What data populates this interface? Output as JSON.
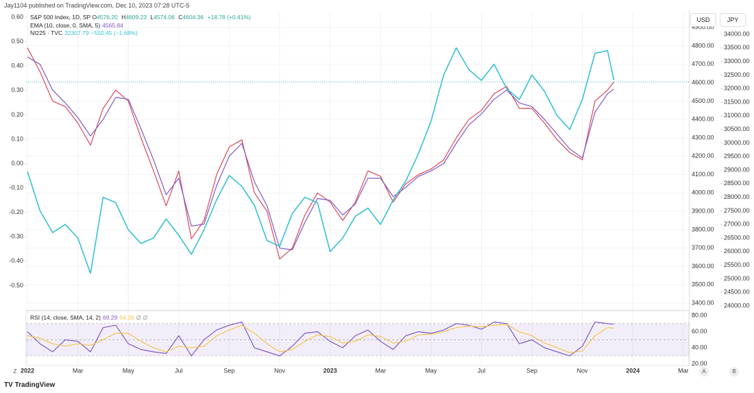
{
  "header": {
    "publisher": "Jay1104 published on TradingView.com, Dec 10, 2023 07:28 UTC-5",
    "brand": "TradingView"
  },
  "buttons": {
    "currency": [
      "USD",
      "JPY"
    ],
    "scale": [
      "A",
      "B"
    ],
    "zoom": "Z"
  },
  "chart_data": [
    {
      "type": "line",
      "x": [
        0,
        0.5,
        1,
        1.5,
        2,
        2.5,
        3,
        3.5,
        4,
        4.5,
        5,
        5.5,
        6,
        6.5,
        7,
        7.5,
        8,
        8.5,
        9,
        9.5,
        10,
        10.5,
        11,
        11.5,
        12,
        12.5,
        13,
        13.5,
        14,
        14.5,
        15,
        15.5,
        16,
        16.5,
        17,
        17.5,
        18,
        18.5,
        19,
        19.5,
        20,
        20.5,
        21,
        21.5,
        22,
        22.5,
        23,
        23.25
      ],
      "xlim": [
        0,
        26.2
      ],
      "xticks": [
        {
          "value": 0,
          "label": "2022"
        },
        {
          "value": 2,
          "label": "Mar"
        },
        {
          "value": 4,
          "label": "May"
        },
        {
          "value": 6,
          "label": "Jul"
        },
        {
          "value": 8,
          "label": "Sep"
        },
        {
          "value": 10,
          "label": "Nov"
        },
        {
          "value": 12,
          "label": "2023"
        },
        {
          "value": 14,
          "label": "Mar"
        },
        {
          "value": 16,
          "label": "May"
        },
        {
          "value": 18,
          "label": "Jul"
        },
        {
          "value": 20,
          "label": "Sep"
        },
        {
          "value": 22,
          "label": "Nov"
        },
        {
          "value": 24,
          "label": "2024"
        },
        {
          "value": 26,
          "label": "Mar"
        }
      ],
      "ylim": [
        -0.6,
        0.62
      ],
      "yticks": [
        {
          "value": 0.6,
          "label": "0.60"
        },
        {
          "value": 0.5,
          "label": "0.50"
        },
        {
          "value": 0.4,
          "label": "0.40"
        },
        {
          "value": 0.3,
          "label": "0.30"
        },
        {
          "value": 0.2,
          "label": "0.20"
        },
        {
          "value": 0.1,
          "label": "0.10"
        },
        {
          "value": 0,
          "label": "0.00"
        },
        {
          "value": -0.1,
          "label": "-0.10"
        },
        {
          "value": -0.2,
          "label": "-0.20"
        },
        {
          "value": -0.3,
          "label": "-0.30"
        },
        {
          "value": -0.4,
          "label": "-0.40"
        },
        {
          "value": -0.5,
          "label": "-0.50"
        }
      ],
      "y2lim": [
        3363,
        4983
      ],
      "y2ticks": [
        {
          "value": 3400,
          "label": "3400.00"
        },
        {
          "value": 3500,
          "label": "3500.00"
        },
        {
          "value": 3600,
          "label": "3600.00"
        },
        {
          "value": 3700,
          "label": "3700.00"
        },
        {
          "value": 3800,
          "label": "3800.00"
        },
        {
          "value": 3900,
          "label": "3900.00"
        },
        {
          "value": 4000,
          "label": "4000.00"
        },
        {
          "value": 4100,
          "label": "4100.00"
        },
        {
          "value": 4200,
          "label": "4200.00"
        },
        {
          "value": 4300,
          "label": "4300.00"
        },
        {
          "value": 4400,
          "label": "4400.00"
        },
        {
          "value": 4500,
          "label": "4500.00"
        },
        {
          "value": 4600,
          "label": "4600.00"
        },
        {
          "value": 4700,
          "label": "4700.00"
        },
        {
          "value": 4800,
          "label": "4800.00"
        },
        {
          "value": 4900,
          "label": "4900.00"
        }
      ],
      "y3lim": [
        23848,
        34808
      ],
      "y3ticks": [
        {
          "value": 24000,
          "label": "24000.00"
        },
        {
          "value": 24500,
          "label": "24500.00"
        },
        {
          "value": 25000,
          "label": "25000.00"
        },
        {
          "value": 25500,
          "label": "25500.00"
        },
        {
          "value": 26000,
          "label": "26000.00"
        },
        {
          "value": 26500,
          "label": "26500.00"
        },
        {
          "value": 27000,
          "label": "27000.00"
        },
        {
          "value": 27500,
          "label": "27500.00"
        },
        {
          "value": 28000,
          "label": "28000.00"
        },
        {
          "value": 28500,
          "label": "28500.00"
        },
        {
          "value": 29000,
          "label": "29000.00"
        },
        {
          "value": 29500,
          "label": "29500.00"
        },
        {
          "value": 30000,
          "label": "30000.00"
        },
        {
          "value": 30500,
          "label": "30500.00"
        },
        {
          "value": 31000,
          "label": "31000.00"
        },
        {
          "value": 31500,
          "label": "31500.00"
        },
        {
          "value": 32000,
          "label": "32000.00"
        },
        {
          "value": 32500,
          "label": "32500.00"
        },
        {
          "value": 33000,
          "label": "33000.00"
        },
        {
          "value": 33500,
          "label": "33500.00"
        },
        {
          "value": 34000,
          "label": "34000.00"
        }
      ],
      "grid": true,
      "price_line": 4604.36,
      "series": [
        {
          "name": "S&P 500 Index, 1D, SP",
          "color": "#d9455a",
          "axis": "y2",
          "stats": [
            {
              "label": "O",
              "value": "4576.20"
            },
            {
              "label": "H",
              "value": "4609.23"
            },
            {
              "label": "L",
              "value": "4574.06"
            },
            {
              "label": "C",
              "value": "4604.36"
            }
          ],
          "change": "+18.78 (+0.41%)",
          "values": [
            4790,
            4660,
            4500,
            4470,
            4380,
            4260,
            4460,
            4560,
            4500,
            4300,
            4120,
            3930,
            4120,
            3750,
            3850,
            4100,
            4250,
            4290,
            4000,
            3900,
            3640,
            3700,
            3880,
            4000,
            3950,
            3850,
            3950,
            4120,
            4090,
            3950,
            4050,
            4100,
            4130,
            4180,
            4300,
            4400,
            4450,
            4540,
            4580,
            4460,
            4460,
            4380,
            4290,
            4220,
            4180,
            4500,
            4560,
            4604.36
          ]
        },
        {
          "name": "EMA (10, close, 0, SMA, 5)",
          "color": "#7e57c2",
          "axis": "y2",
          "last": "4565.84",
          "values": [
            4740,
            4700,
            4560,
            4490,
            4410,
            4310,
            4400,
            4520,
            4510,
            4350,
            4180,
            3990,
            4080,
            3820,
            3830,
            4040,
            4200,
            4270,
            4060,
            3930,
            3700,
            3690,
            3840,
            3970,
            3960,
            3880,
            3940,
            4080,
            4080,
            3980,
            4030,
            4090,
            4120,
            4160,
            4270,
            4370,
            4430,
            4510,
            4560,
            4490,
            4470,
            4400,
            4320,
            4240,
            4190,
            4440,
            4540,
            4565.84
          ]
        },
        {
          "name": "NI225 · TVC",
          "color": "#35c0d4",
          "axis": "y3",
          "last": "32307.79",
          "change": "−550.45 (−1.68%)",
          "values": [
            28950,
            27500,
            26700,
            27000,
            26500,
            25200,
            28000,
            27800,
            26800,
            26300,
            26500,
            27200,
            26600,
            25900,
            26800,
            27900,
            28800,
            28400,
            27700,
            26400,
            26200,
            27400,
            28000,
            27800,
            26000,
            26500,
            27300,
            27600,
            27000,
            27900,
            28600,
            29600,
            30800,
            32500,
            33500,
            32700,
            32300,
            32900,
            32000,
            31600,
            32500,
            31900,
            31000,
            30500,
            31600,
            33300,
            33400,
            32307.79
          ]
        }
      ]
    },
    {
      "type": "line",
      "ylim": [
        18,
        86
      ],
      "yticks": [
        {
          "value": 80,
          "label": "80.00"
        },
        {
          "value": 60,
          "label": "60.00"
        },
        {
          "value": 40,
          "label": "40.00"
        },
        {
          "value": 20,
          "label": "20.00"
        }
      ],
      "band": [
        30,
        70
      ],
      "midline": 50,
      "extra": "∅ ∅",
      "series": [
        {
          "name": "RSI (14, close, SMA, 14, 2)",
          "color": "#7e57c2",
          "last": "69.29",
          "values": [
            60,
            45,
            35,
            50,
            48,
            35,
            65,
            68,
            45,
            38,
            35,
            33,
            55,
            30,
            50,
            62,
            68,
            72,
            40,
            35,
            30,
            42,
            58,
            60,
            48,
            40,
            55,
            62,
            48,
            38,
            55,
            60,
            58,
            62,
            70,
            68,
            63,
            72,
            70,
            45,
            50,
            40,
            35,
            30,
            42,
            72,
            70,
            69.29
          ]
        },
        {
          "color": "#f3c64a",
          "last": "64.39",
          "values": [
            55,
            52,
            45,
            42,
            45,
            43,
            50,
            58,
            58,
            48,
            40,
            35,
            42,
            40,
            42,
            55,
            62,
            68,
            58,
            45,
            35,
            38,
            48,
            56,
            54,
            46,
            48,
            56,
            54,
            46,
            48,
            56,
            57,
            60,
            65,
            67,
            66,
            68,
            69,
            60,
            55,
            46,
            40,
            34,
            36,
            55,
            65,
            64.39
          ]
        }
      ]
    }
  ]
}
